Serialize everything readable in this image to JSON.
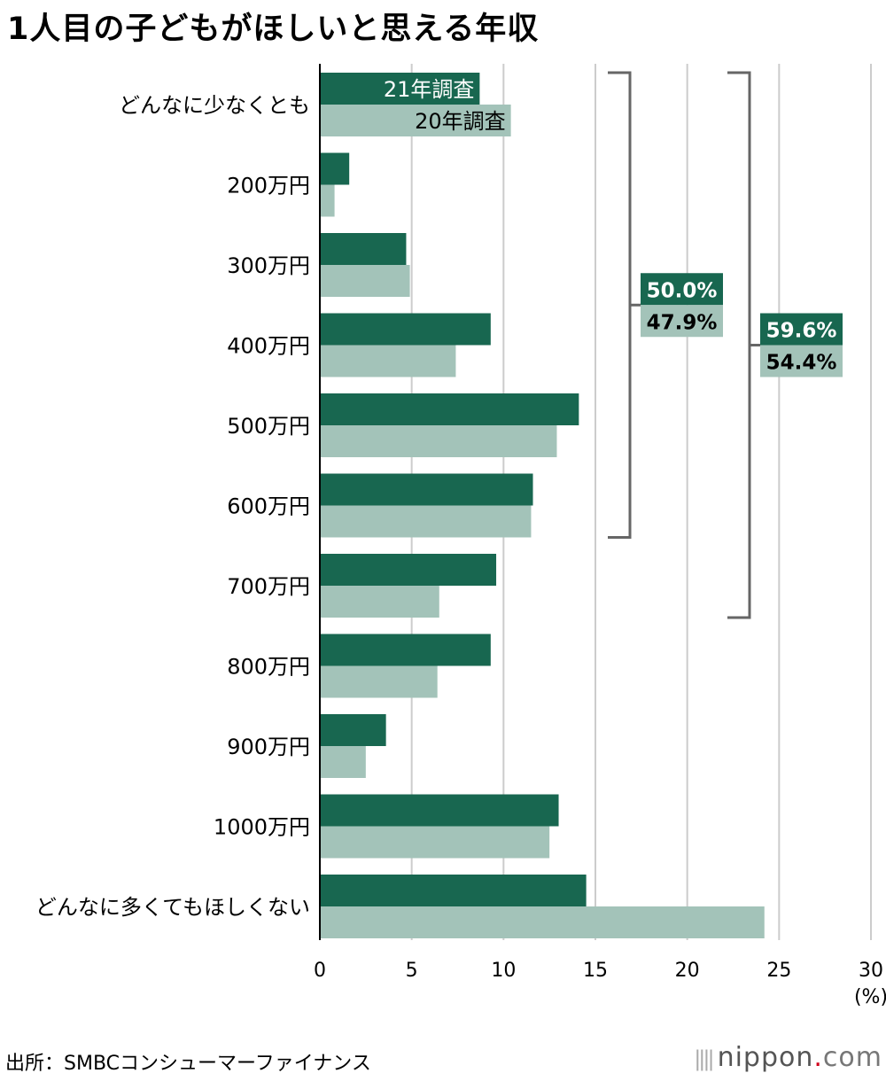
{
  "chart_data": {
    "type": "bar",
    "orientation": "horizontal",
    "title": "1人目の子どもがほしいと思える年収",
    "categories": [
      "どんなに少なくとも",
      "200万円",
      "300万円",
      "400万円",
      "500万円",
      "600万円",
      "700万円",
      "800万円",
      "900万円",
      "1000万円",
      "どんなに多くてもほしくない"
    ],
    "series": [
      {
        "name": "21年調査",
        "values": [
          8.7,
          1.6,
          4.7,
          9.3,
          14.1,
          11.6,
          9.6,
          9.3,
          3.6,
          13.0,
          14.5
        ]
      },
      {
        "name": "20年調査",
        "values": [
          10.4,
          0.8,
          4.9,
          7.4,
          12.9,
          11.5,
          6.5,
          6.4,
          2.5,
          12.5,
          24.2
        ]
      }
    ],
    "xlim": [
      0,
      30
    ],
    "xticks": [
      "0",
      "5",
      "10",
      "15",
      "20",
      "25",
      "30"
    ],
    "x_unit": "(%)",
    "grid": true,
    "brackets": [
      {
        "from": "どんなに少なくとも",
        "to": "600万円",
        "labels": [
          "50.0%",
          "47.9%"
        ]
      },
      {
        "from": "どんなに少なくとも",
        "to": "700万円",
        "labels": [
          "59.6%",
          "54.4%"
        ]
      }
    ],
    "colors": {
      "series_21": "#186750",
      "series_20": "#a3c3b9",
      "bracket": "#666666",
      "grid": "#cccccc"
    }
  },
  "footer": {
    "source": "出所：SMBCコンシューマーファイナンス",
    "logo_main": "nippon",
    "logo_dot": ".",
    "logo_tail": "com"
  }
}
